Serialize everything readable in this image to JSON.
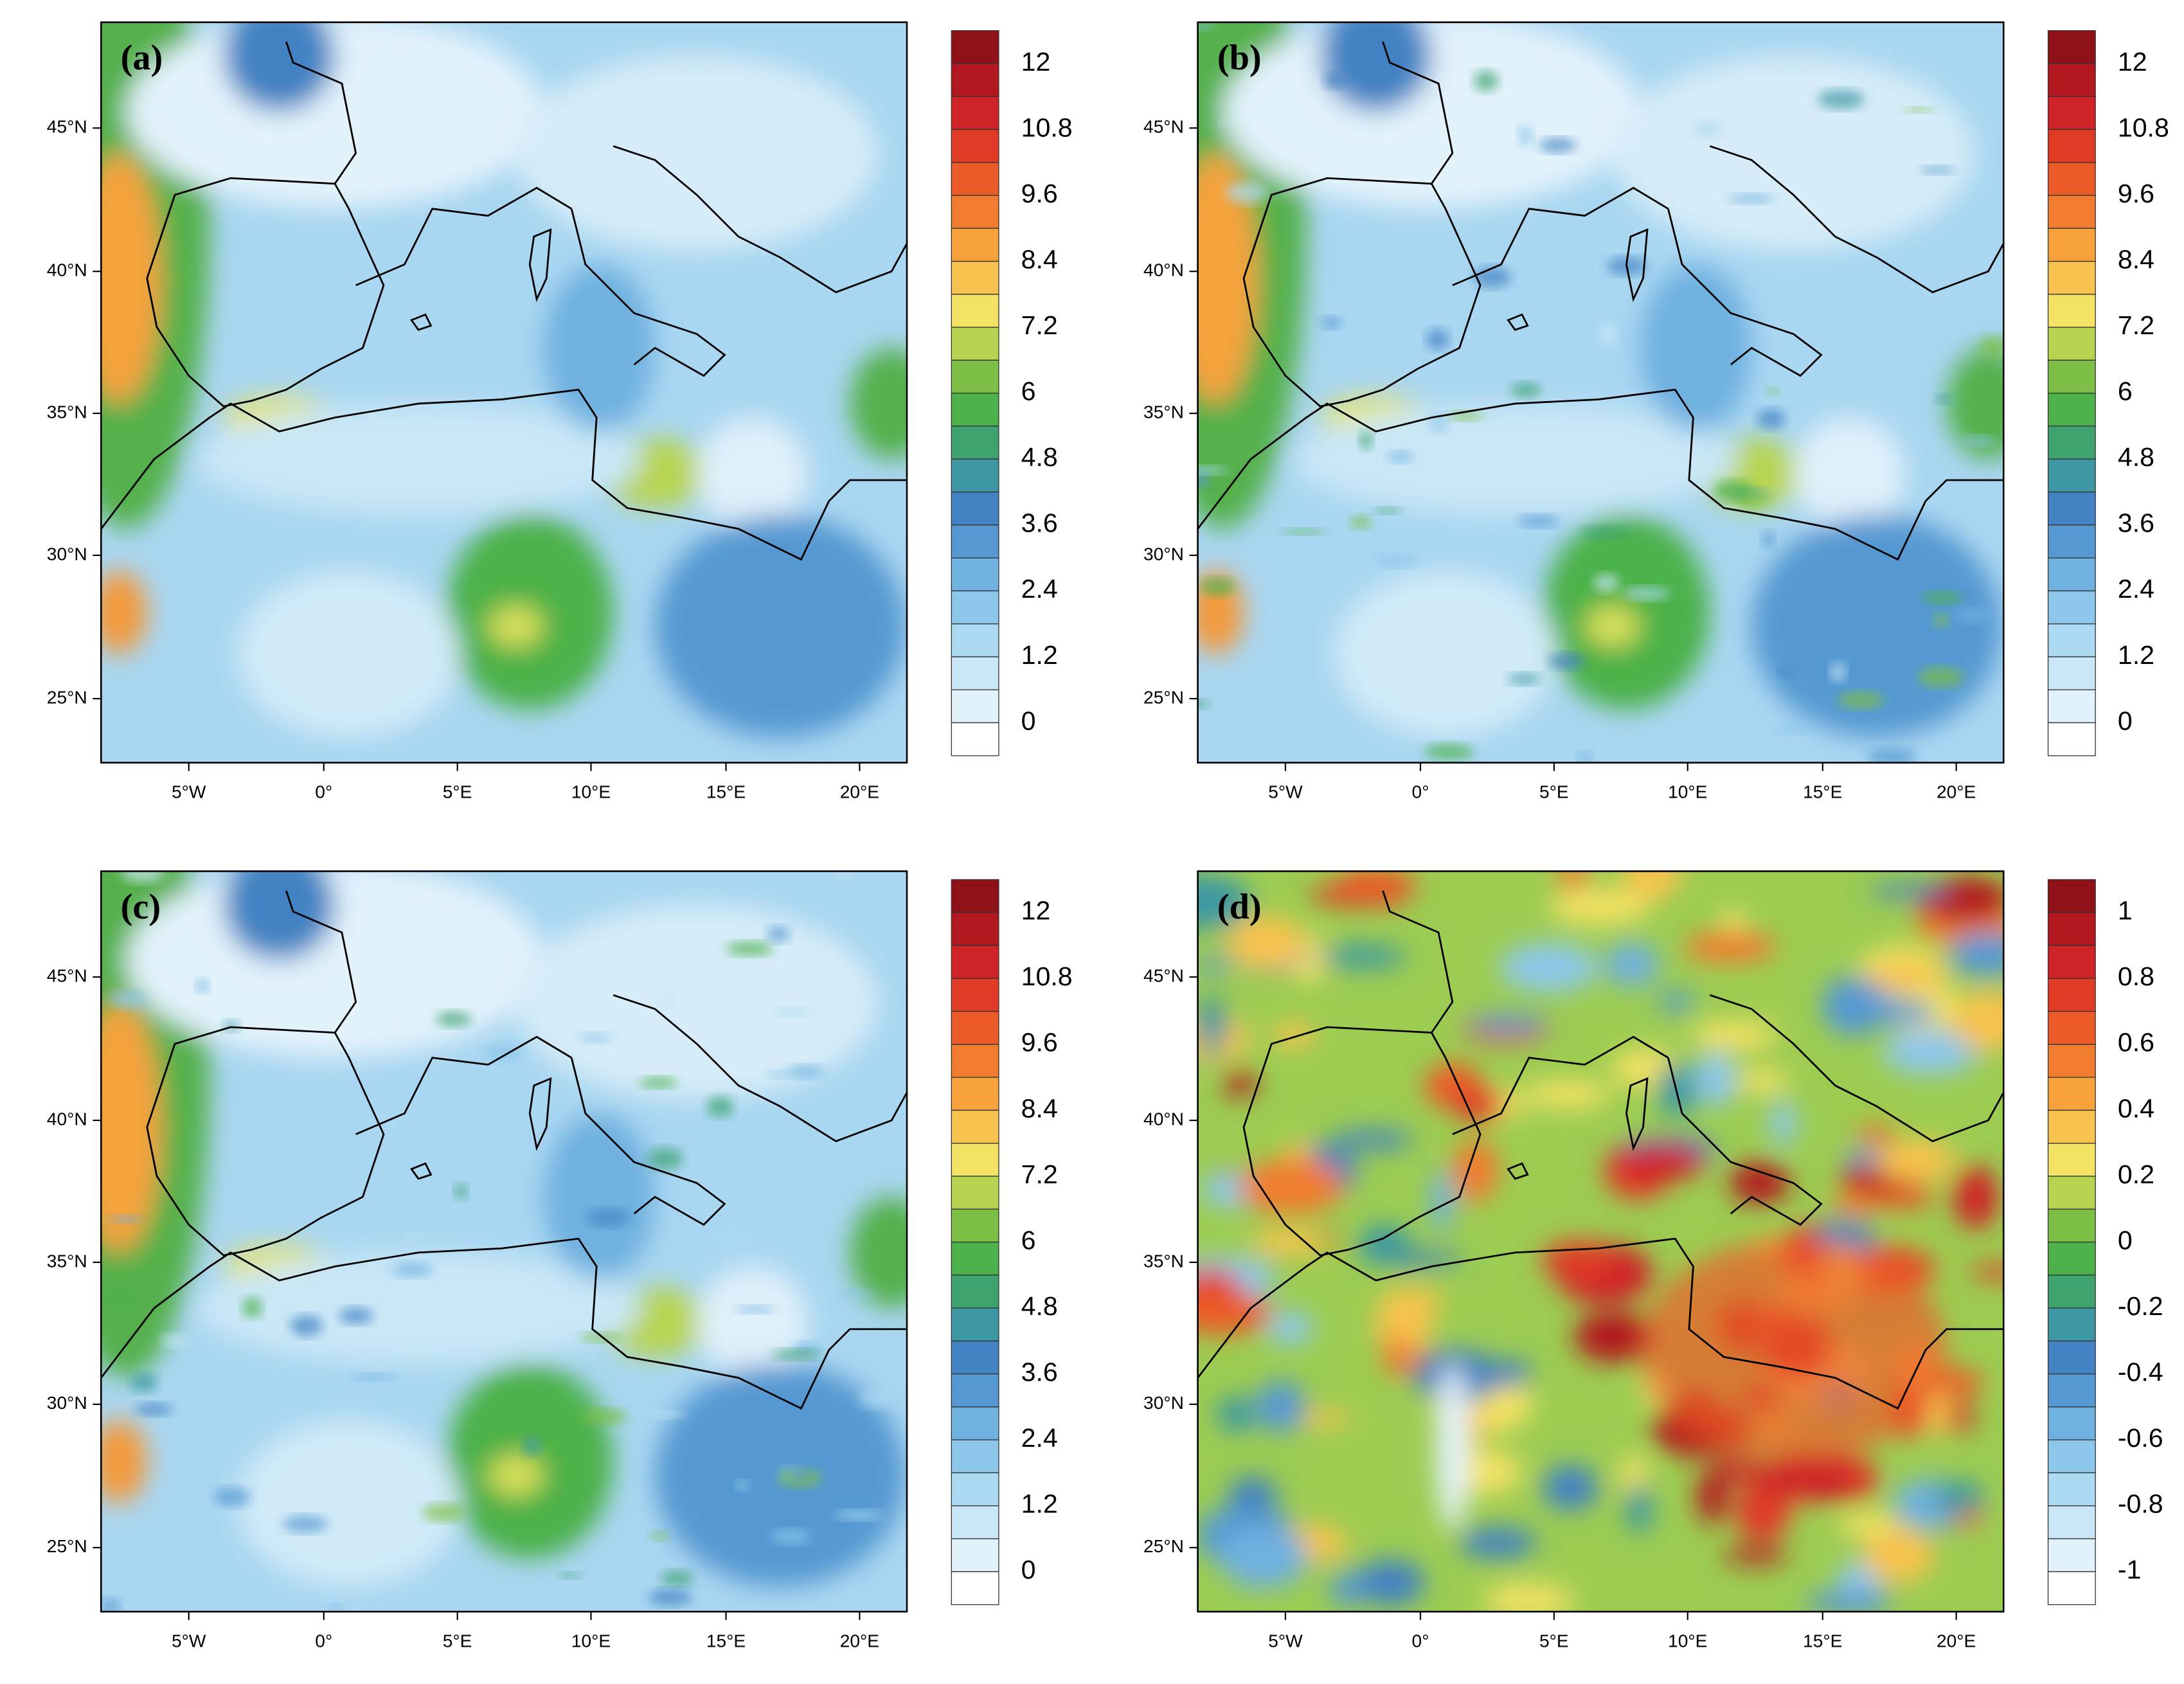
{
  "panels": [
    {
      "label": "(a)",
      "colorbar_labels": [
        "12",
        "10.8",
        "9.6",
        "8.4",
        "7.2",
        "6",
        "4.8",
        "3.6",
        "2.4",
        "1.2",
        "0"
      ]
    },
    {
      "label": "(b)",
      "colorbar_labels": [
        "12",
        "10.8",
        "9.6",
        "8.4",
        "7.2",
        "6",
        "4.8",
        "3.6",
        "2.4",
        "1.2",
        "0"
      ]
    },
    {
      "label": "(c)",
      "colorbar_labels": [
        "12",
        "10.8",
        "9.6",
        "8.4",
        "7.2",
        "6",
        "4.8",
        "3.6",
        "2.4",
        "1.2",
        "0"
      ]
    },
    {
      "label": "(d)",
      "colorbar_labels": [
        "1",
        "0.8",
        "0.6",
        "0.4",
        "0.2",
        "0",
        "-0.2",
        "-0.4",
        "-0.6",
        "-0.8",
        "-1"
      ]
    }
  ],
  "x_tick_labels": [
    "5°W",
    "0°",
    "5°E",
    "10°E",
    "15°E",
    "20°E"
  ],
  "y_tick_labels": [
    "45°N",
    "40°N",
    "35°N",
    "30°N",
    "25°N"
  ]
}
